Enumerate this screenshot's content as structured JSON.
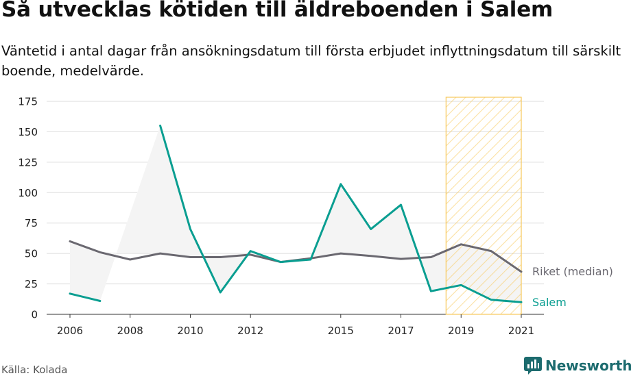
{
  "title": "Så utvecklas kötiden till äldreboenden i Salem",
  "subtitle": "Väntetid i antal dagar från ansökningsdatum till första erbjudet inflyttningsdatum till särskilt boende, medelvärde.",
  "source": "Källa: Kolada",
  "brand": "Newsworthy",
  "colors": {
    "salem": "#0a9e91",
    "riket": "#6a6870",
    "highlight": "#f7c85a",
    "area": "#f4f4f4",
    "grid": "#dddddd"
  },
  "chart_data": {
    "type": "line",
    "x": [
      2006,
      2007,
      2008,
      2009,
      2010,
      2011,
      2012,
      2013,
      2014,
      2015,
      2016,
      2017,
      2018,
      2019,
      2020,
      2021
    ],
    "x_ticks": [
      "2006",
      "2008",
      "2010",
      "2012",
      "2015",
      "2017",
      "2019",
      "2021"
    ],
    "y_ticks": [
      "0",
      "25",
      "50",
      "75",
      "100",
      "125",
      "150",
      "175"
    ],
    "ylim": [
      0,
      175
    ],
    "xlim": [
      2006,
      2021
    ],
    "grid": true,
    "highlight_range": [
      2018.5,
      2021
    ],
    "series": [
      {
        "name": "Riket (median)",
        "values": [
          60,
          51,
          45,
          50,
          47,
          47,
          49,
          43,
          46,
          50,
          48,
          45.5,
          47,
          57.5,
          52,
          35
        ]
      },
      {
        "name": "Salem",
        "values": [
          17,
          11,
          null,
          155,
          70,
          18,
          52,
          43,
          45,
          107,
          70,
          90,
          19,
          24,
          12,
          10
        ]
      }
    ]
  }
}
